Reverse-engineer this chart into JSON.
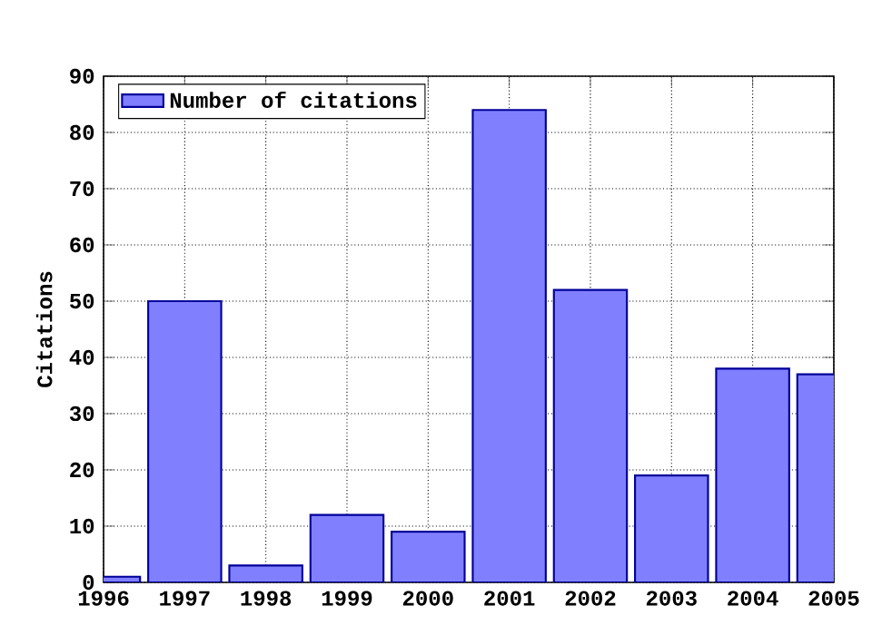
{
  "chart_data": {
    "type": "bar",
    "ylabel": "Citations",
    "x": [
      1996,
      1997,
      1998,
      1999,
      2000,
      2001,
      2002,
      2003,
      2004,
      2005
    ],
    "series": [
      {
        "name": "Number of citations",
        "color": "#8080ff",
        "values": [
          1,
          50,
          3,
          12,
          9,
          84,
          52,
          19,
          38,
          37
        ]
      }
    ],
    "xlim": [
      1996,
      2005
    ],
    "xticks": [
      1996,
      1997,
      1998,
      1999,
      2000,
      2001,
      2002,
      2003,
      2004,
      2005
    ],
    "ylim": [
      0,
      90
    ],
    "yticks": [
      0,
      10,
      20,
      30,
      40,
      50,
      60,
      70,
      80,
      90
    ],
    "grid": true,
    "legend": "top left"
  }
}
